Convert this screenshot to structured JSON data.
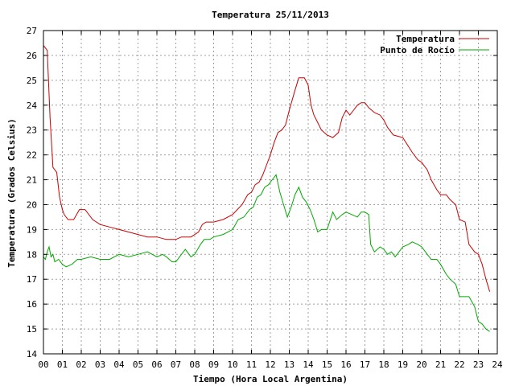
{
  "chart_data": {
    "type": "line",
    "title": "Temperatura 25/11/2013",
    "xlabel": "Tiempo (Hora Local Argentina)",
    "ylabel": "Temperatura (Grados Celsius)",
    "xlim": [
      0,
      24
    ],
    "ylim": [
      14,
      27
    ],
    "x_ticks": [
      "00",
      "01",
      "02",
      "03",
      "04",
      "05",
      "06",
      "07",
      "08",
      "09",
      "10",
      "11",
      "12",
      "13",
      "14",
      "15",
      "16",
      "17",
      "18",
      "19",
      "20",
      "21",
      "22",
      "23",
      "24"
    ],
    "y_ticks": [
      "14",
      "15",
      "16",
      "17",
      "18",
      "19",
      "20",
      "21",
      "22",
      "23",
      "24",
      "25",
      "26",
      "27"
    ],
    "grid": true,
    "legend_position": "top-right",
    "series": [
      {
        "name": "Temperatura",
        "color": "#cc0000",
        "x": [
          0.0,
          0.1,
          0.2,
          0.35,
          0.5,
          0.6,
          0.7,
          0.85,
          1.0,
          1.1,
          1.3,
          1.6,
          1.9,
          2.2,
          2.6,
          3.0,
          3.5,
          4.0,
          4.5,
          5.0,
          5.5,
          6.0,
          6.5,
          7.0,
          7.3,
          7.5,
          7.8,
          8.0,
          8.2,
          8.4,
          8.6,
          9.0,
          9.5,
          10.0,
          10.5,
          10.8,
          11.0,
          11.2,
          11.4,
          11.6,
          11.8,
          12.0,
          12.2,
          12.4,
          12.6,
          12.8,
          13.0,
          13.3,
          13.5,
          13.8,
          14.0,
          14.15,
          14.3,
          14.5,
          14.7,
          15.0,
          15.3,
          15.6,
          15.8,
          16.0,
          16.2,
          16.4,
          16.6,
          16.8,
          17.0,
          17.2,
          17.5,
          17.8,
          18.0,
          18.2,
          18.5,
          19.0,
          19.5,
          19.8,
          20.0,
          20.3,
          20.5,
          20.8,
          21.0,
          21.3,
          21.5,
          21.8,
          22.0,
          22.3,
          22.5,
          22.8,
          23.0,
          23.2,
          23.4,
          23.6
        ],
        "values": [
          26.4,
          26.3,
          26.2,
          23.5,
          21.5,
          21.4,
          21.3,
          20.3,
          19.8,
          19.6,
          19.4,
          19.4,
          19.8,
          19.8,
          19.4,
          19.2,
          19.1,
          19.0,
          18.9,
          18.8,
          18.7,
          18.7,
          18.6,
          18.6,
          18.7,
          18.7,
          18.7,
          18.8,
          18.9,
          19.2,
          19.3,
          19.3,
          19.4,
          19.6,
          20.0,
          20.4,
          20.5,
          20.8,
          20.9,
          21.2,
          21.6,
          22.0,
          22.5,
          22.9,
          23.0,
          23.2,
          23.8,
          24.6,
          25.1,
          25.1,
          24.8,
          24.0,
          23.6,
          23.3,
          23.0,
          22.8,
          22.7,
          22.9,
          23.5,
          23.8,
          23.6,
          23.8,
          24.0,
          24.1,
          24.1,
          23.9,
          23.7,
          23.6,
          23.4,
          23.1,
          22.8,
          22.7,
          22.1,
          21.8,
          21.7,
          21.4,
          21.0,
          20.6,
          20.4,
          20.4,
          20.2,
          20.0,
          19.4,
          19.3,
          18.4,
          18.1,
          18.0,
          17.6,
          17.0,
          16.5
        ]
      },
      {
        "name": "Punto de Rocío",
        "color": "#00aa00",
        "x": [
          0.0,
          0.1,
          0.2,
          0.3,
          0.4,
          0.5,
          0.6,
          0.8,
          1.0,
          1.2,
          1.5,
          1.8,
          2.0,
          2.5,
          3.0,
          3.5,
          4.0,
          4.5,
          5.0,
          5.5,
          6.0,
          6.3,
          6.5,
          6.8,
          7.0,
          7.3,
          7.5,
          7.8,
          8.0,
          8.3,
          8.5,
          8.8,
          9.0,
          9.5,
          10.0,
          10.3,
          10.6,
          10.9,
          11.1,
          11.3,
          11.5,
          11.7,
          11.9,
          12.1,
          12.3,
          12.5,
          12.7,
          12.9,
          13.1,
          13.3,
          13.5,
          13.7,
          13.9,
          14.1,
          14.3,
          14.5,
          14.7,
          15.0,
          15.3,
          15.5,
          15.8,
          16.0,
          16.3,
          16.6,
          16.8,
          17.0,
          17.2,
          17.3,
          17.5,
          17.8,
          18.0,
          18.2,
          18.4,
          18.6,
          19.0,
          19.3,
          19.5,
          19.8,
          20.0,
          20.3,
          20.5,
          20.8,
          21.0,
          21.3,
          21.5,
          21.8,
          22.0,
          22.3,
          22.5,
          22.8,
          23.0,
          23.2,
          23.4,
          23.6
        ],
        "values": [
          17.9,
          17.8,
          18.1,
          18.3,
          17.9,
          18.0,
          17.7,
          17.8,
          17.6,
          17.5,
          17.6,
          17.8,
          17.8,
          17.9,
          17.8,
          17.8,
          18.0,
          17.9,
          18.0,
          18.1,
          17.9,
          18.0,
          17.9,
          17.7,
          17.7,
          18.0,
          18.2,
          17.9,
          18.0,
          18.4,
          18.6,
          18.6,
          18.7,
          18.8,
          19.0,
          19.4,
          19.5,
          19.8,
          19.9,
          20.3,
          20.4,
          20.7,
          20.8,
          21.0,
          21.2,
          20.5,
          20.0,
          19.5,
          19.9,
          20.4,
          20.7,
          20.3,
          20.1,
          19.8,
          19.4,
          18.9,
          19.0,
          19.0,
          19.7,
          19.4,
          19.6,
          19.7,
          19.6,
          19.5,
          19.7,
          19.7,
          19.6,
          18.4,
          18.1,
          18.3,
          18.2,
          18.0,
          18.1,
          17.9,
          18.3,
          18.4,
          18.5,
          18.4,
          18.3,
          18.0,
          17.8,
          17.8,
          17.6,
          17.2,
          17.0,
          16.8,
          16.3,
          16.3,
          16.3,
          15.9,
          15.3,
          15.2,
          15.0,
          14.9
        ]
      }
    ]
  }
}
